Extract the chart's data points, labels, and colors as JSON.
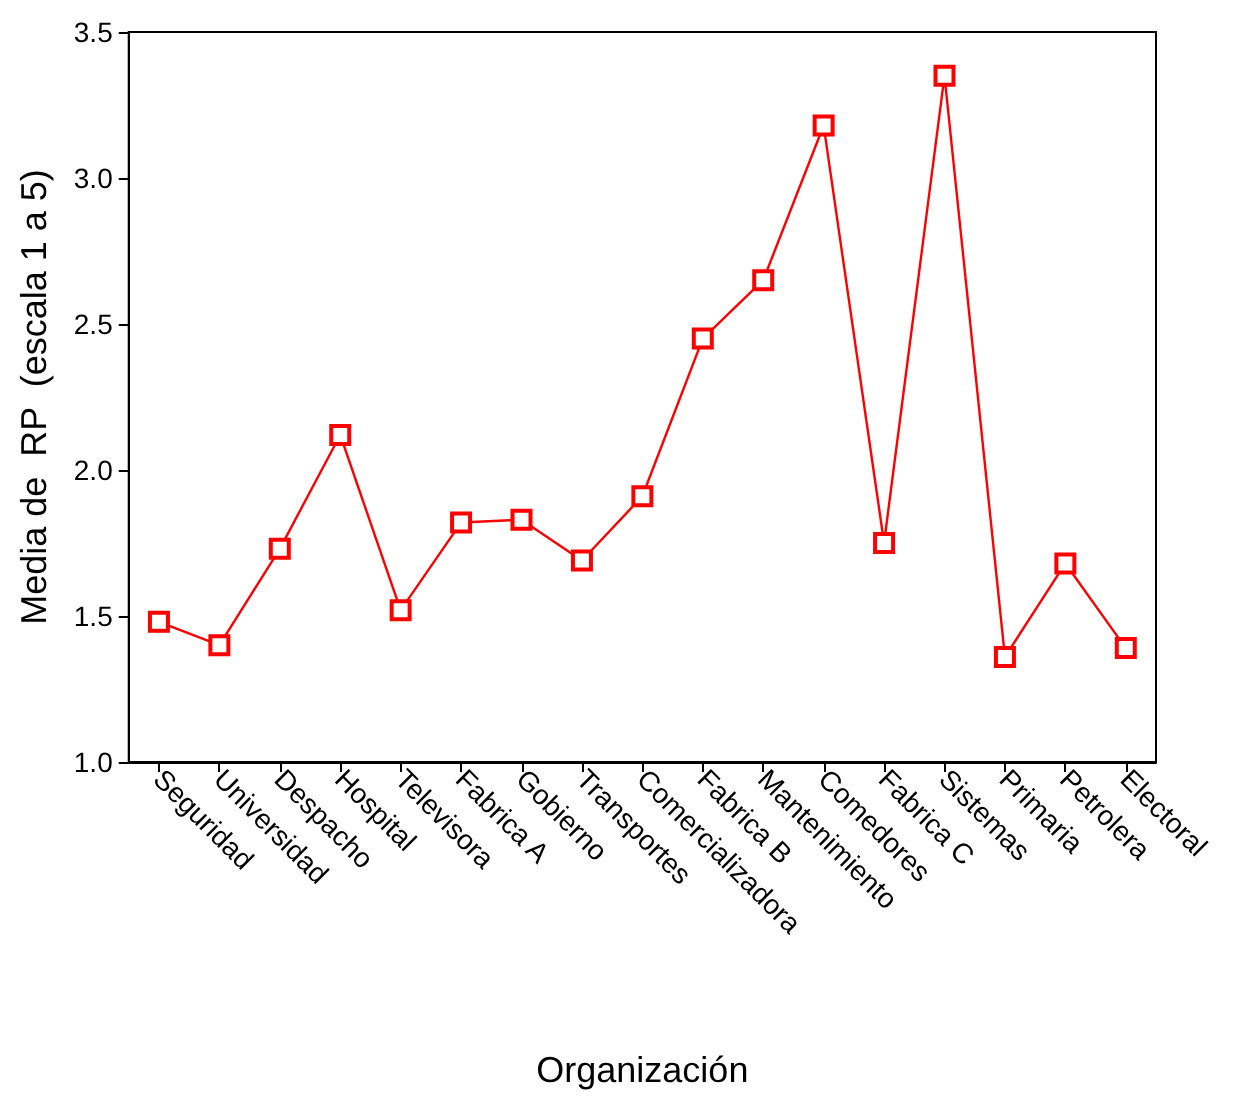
{
  "chart_data": {
    "type": "line",
    "xlabel": "Organización",
    "ylabel": "Media de  RP  (escala 1 a 5)",
    "categories": [
      "Seguridad",
      "Universidad",
      "Despacho",
      "Hospital",
      "Televisora",
      "Fabrica A",
      "Gobierno",
      "Transportes",
      "Comercializadora",
      "Fabrica B",
      "Mantenimiento",
      "Comedores",
      "Fabrica C",
      "Sistemas",
      "Primaria",
      "Petrolera",
      "Electoral"
    ],
    "series": [
      {
        "color": "#ff0000",
        "values": [
          1.48,
          1.4,
          1.73,
          2.12,
          1.52,
          1.82,
          1.83,
          1.69,
          1.91,
          2.45,
          2.65,
          3.18,
          1.75,
          3.35,
          1.36,
          1.68,
          1.39
        ]
      }
    ],
    "ylim": [
      1.0,
      3.5
    ],
    "yticks": [
      {
        "value": 1,
        "label": "1.0"
      },
      {
        "value": 1.5,
        "label": "1.5"
      },
      {
        "value": 2,
        "label": "2.0"
      },
      {
        "value": 2.5,
        "label": "2.5"
      },
      {
        "value": 3,
        "label": "3.0"
      },
      {
        "value": 3.5,
        "label": "3.5"
      }
    ],
    "grid": false,
    "marker": "square",
    "line_style": "solid"
  }
}
